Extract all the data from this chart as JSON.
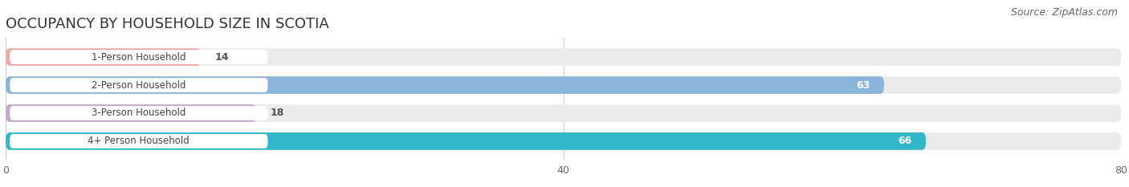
{
  "title": "OCCUPANCY BY HOUSEHOLD SIZE IN SCOTIA",
  "source": "Source: ZipAtlas.com",
  "categories": [
    "1-Person Household",
    "2-Person Household",
    "3-Person Household",
    "4+ Person Household"
  ],
  "values": [
    14,
    63,
    18,
    66
  ],
  "bar_colors": [
    "#f0a8a8",
    "#8ab4dc",
    "#c4a8cc",
    "#30b8c8"
  ],
  "bar_bg_color": "#ebebeb",
  "label_box_color": "#ffffff",
  "xlim": [
    0,
    80
  ],
  "xticks": [
    0,
    40,
    80
  ],
  "background_color": "#ffffff",
  "title_fontsize": 13,
  "source_fontsize": 9,
  "label_fontsize": 8.5,
  "value_fontsize": 9,
  "bar_height": 0.62,
  "bar_label_inside_threshold": 50
}
